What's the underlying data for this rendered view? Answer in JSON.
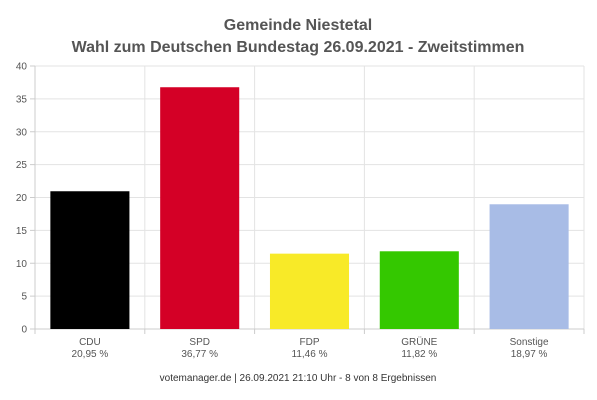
{
  "chart_data": {
    "type": "bar",
    "title": "Gemeinde Niestetal",
    "subtitle": "Wahl zum Deutschen Bundestag 26.09.2021  - Zweitstimmen",
    "categories": [
      "CDU",
      "SPD",
      "FDP",
      "GRÜNE",
      "Sonstige"
    ],
    "values": [
      20.95,
      36.77,
      11.46,
      11.82,
      18.97
    ],
    "value_labels": [
      "20,95 %",
      "36,77 %",
      "11,46 %",
      "11,82 %",
      "18,97 %"
    ],
    "colors": [
      "#000000",
      "#d40026",
      "#f8ea28",
      "#34c800",
      "#a8bce6"
    ],
    "ylim": [
      0,
      40
    ],
    "yticks": [
      0,
      5,
      10,
      15,
      20,
      25,
      30,
      35,
      40
    ],
    "grid": true,
    "legend": "none",
    "xlabel": "",
    "ylabel": ""
  },
  "footer": "votemanager.de | 26.09.2021 21:10 Uhr - 8 von 8 Ergebnissen"
}
